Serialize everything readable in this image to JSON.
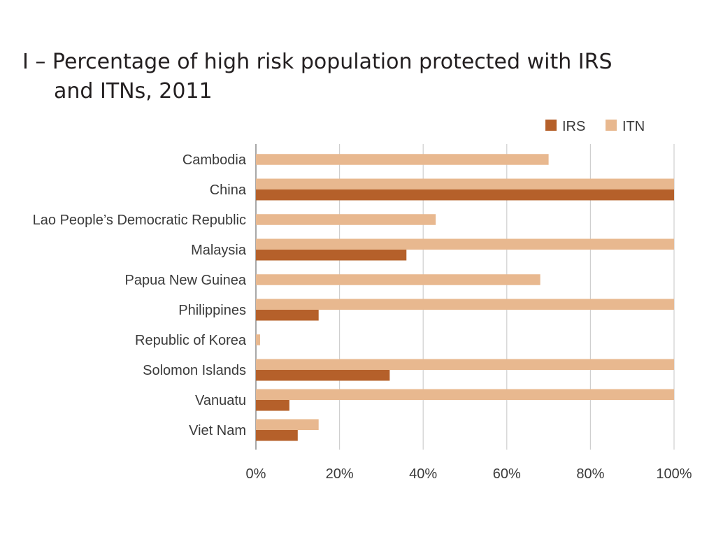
{
  "title_line1": "I – Percentage of high risk population protected with IRS",
  "title_line2": "and ITNs, 2011",
  "chart_data": {
    "type": "bar",
    "orientation": "horizontal",
    "title": "I – Percentage of high risk population protected with IRS and ITNs, 2011",
    "categories": [
      "Cambodia",
      "China",
      "Lao People’s Democratic Republic",
      "Malaysia",
      "Papua New Guinea",
      "Philippines",
      "Republic of Korea",
      "Solomon Islands",
      "Vanuatu",
      "Viet Nam"
    ],
    "series": [
      {
        "name": "ITN",
        "color": "#e8b88f",
        "values": [
          70,
          100,
          43,
          100,
          68,
          100,
          1,
          100,
          100,
          15
        ]
      },
      {
        "name": "IRS",
        "color": "#b5602a",
        "values": [
          0,
          100,
          0,
          36,
          0,
          15,
          0,
          32,
          8,
          10
        ]
      }
    ],
    "legend": {
      "position": "top-right",
      "order": [
        "IRS",
        "ITN"
      ]
    },
    "xlim": [
      0,
      100
    ],
    "x_ticks": [
      0,
      20,
      40,
      60,
      80,
      100
    ],
    "x_tick_labels": [
      "0%",
      "20%",
      "40%",
      "60%",
      "80%",
      "100%"
    ],
    "grid": "vertical"
  }
}
